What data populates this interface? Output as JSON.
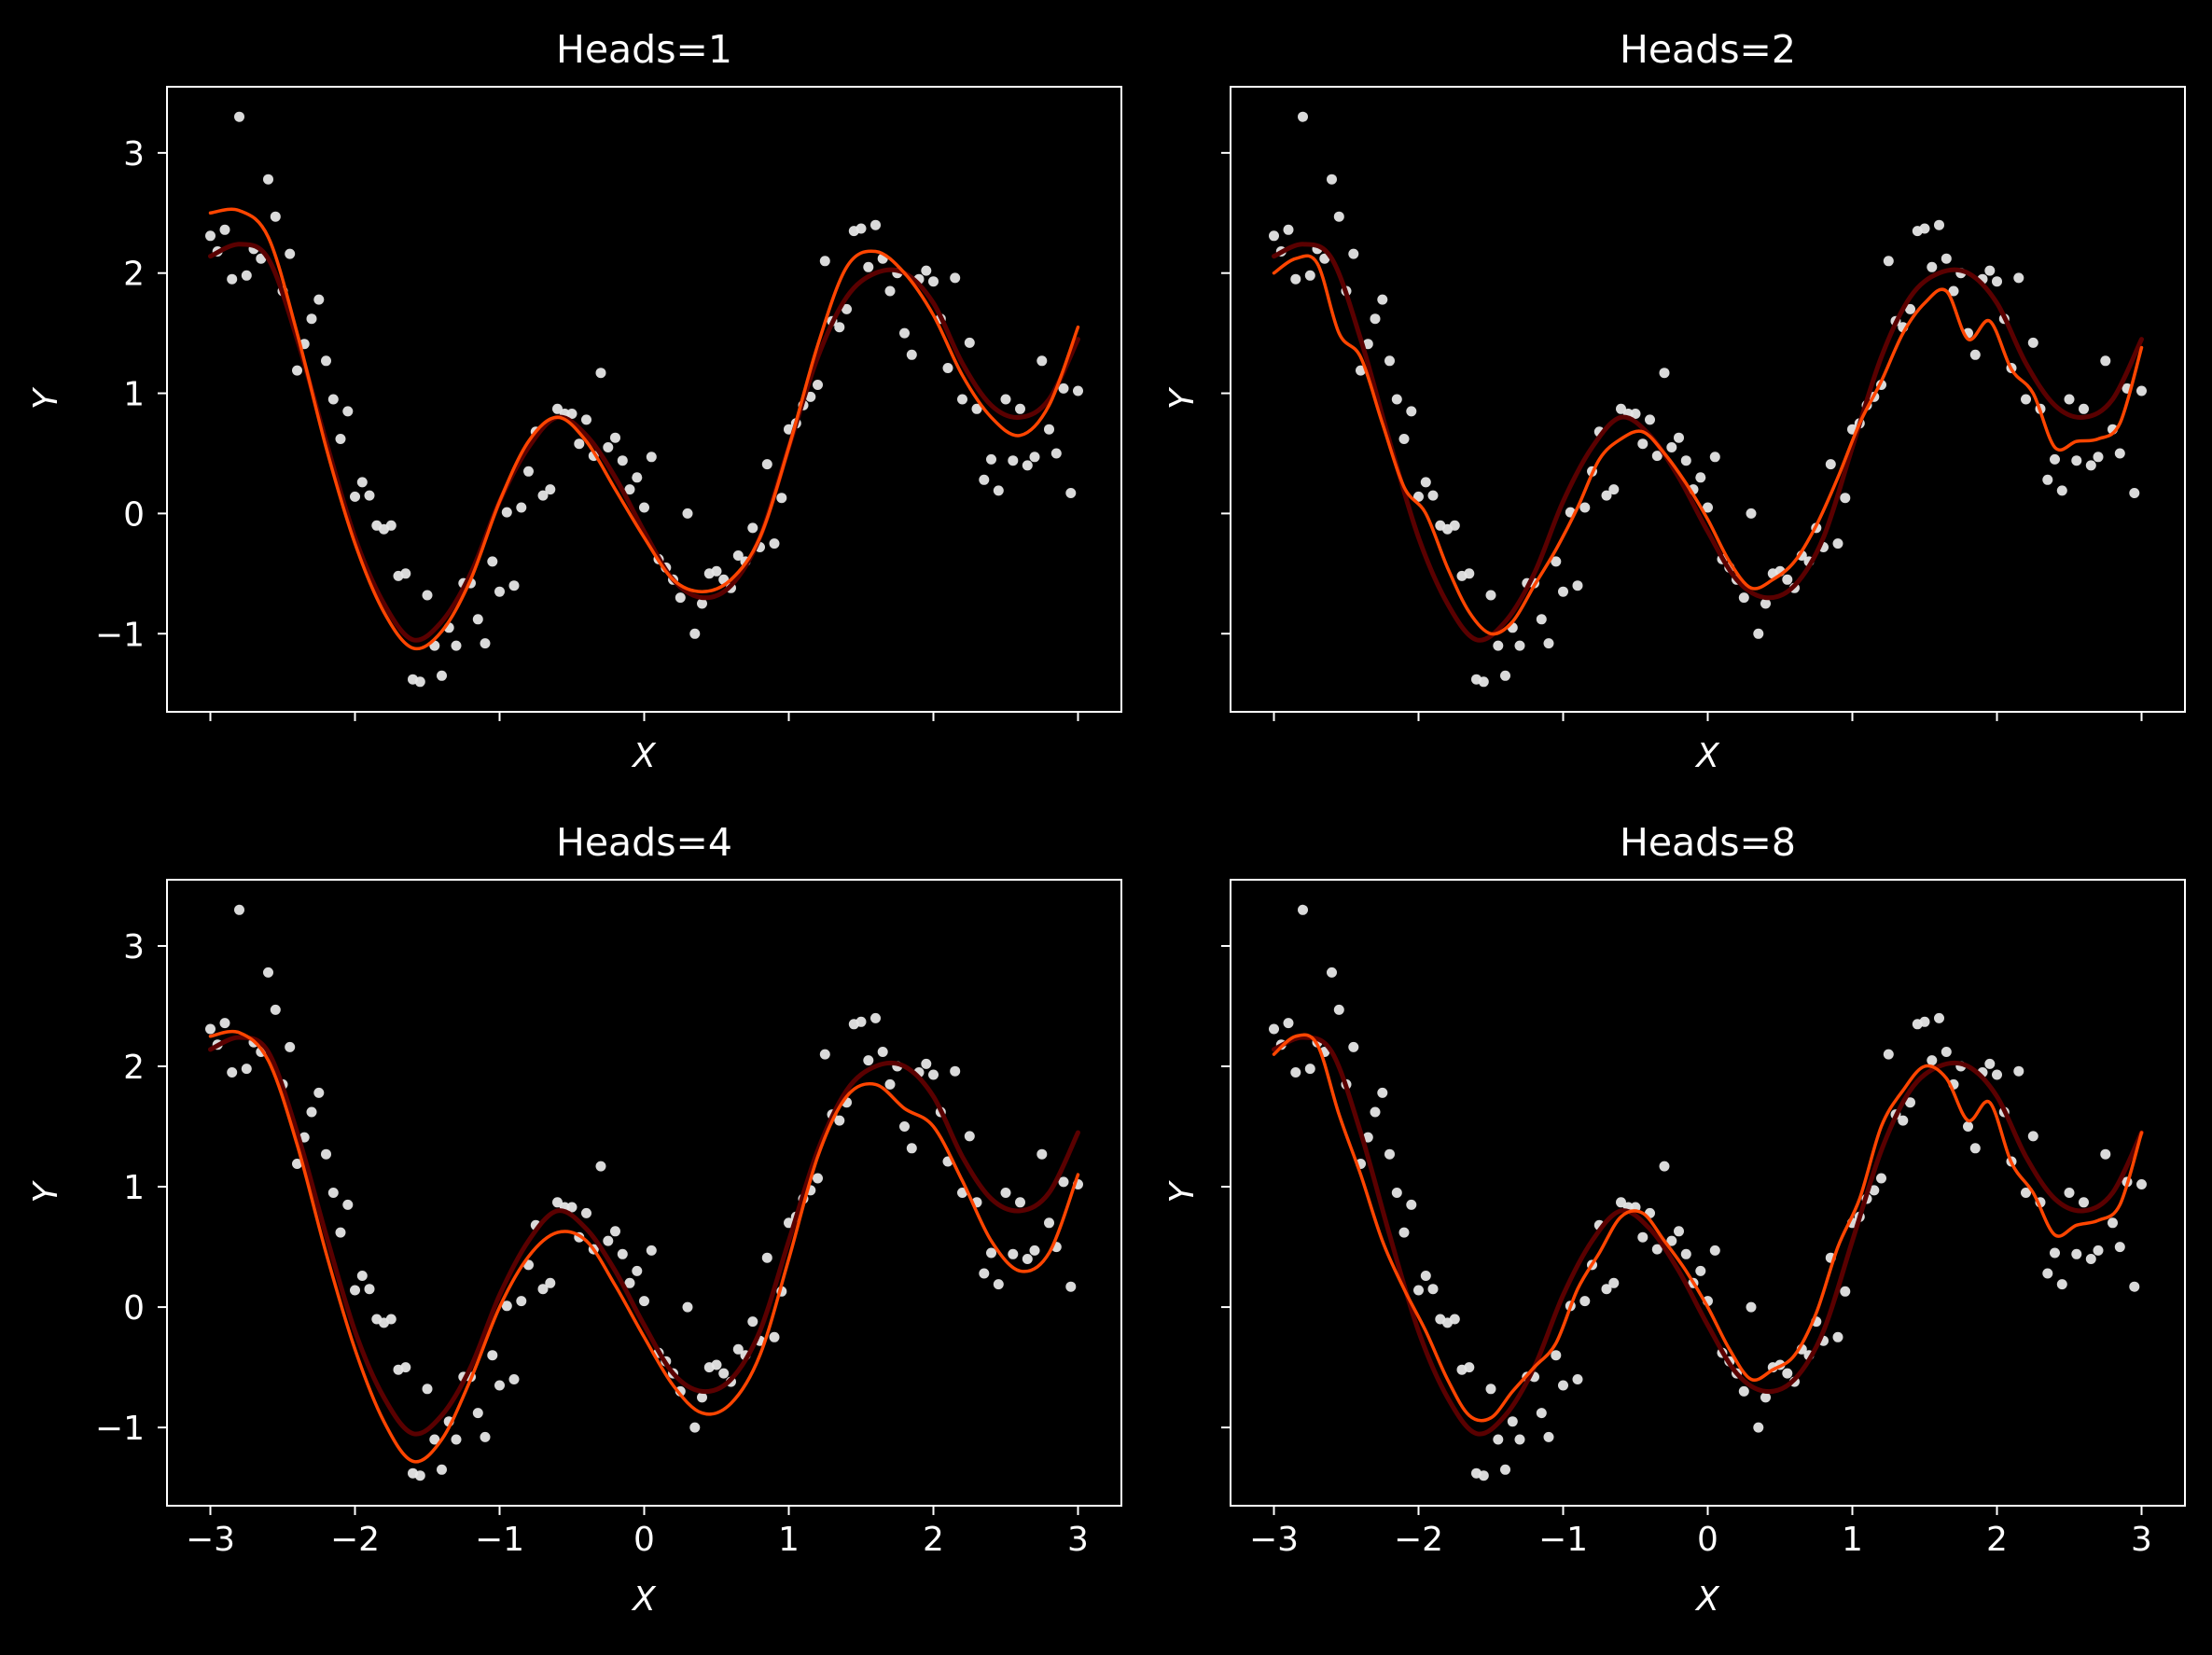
{
  "figure": {
    "background": "#000000",
    "foreground": "#ffffff"
  },
  "colors": {
    "truth": "#5a0000",
    "prediction": "#ff4500",
    "points": "#e6e6e6"
  },
  "chart_data": [
    {
      "type": "scatter",
      "title": "Heads=1",
      "xlabel": "X",
      "ylabel": "Y",
      "xlim": [
        -3.3,
        3.3
      ],
      "ylim": [
        -1.65,
        3.55
      ],
      "xticks": [
        -3,
        -2,
        -1,
        0,
        1,
        2,
        3
      ],
      "xtick_labels": [
        "−3",
        "−2",
        "−1",
        "0",
        "1",
        "2",
        "3"
      ],
      "show_xtick_labels": false,
      "show_ytick_labels": true,
      "yticks": [
        -1,
        0,
        1,
        2,
        3
      ],
      "ytick_labels": [
        "−1",
        "0",
        "1",
        "2",
        "3"
      ],
      "grid": false,
      "series": [
        {
          "role": "truth",
          "x": [
            -3.0,
            -2.8,
            -2.6,
            -2.4,
            -2.2,
            -2.0,
            -1.8,
            -1.6,
            -1.4,
            -1.2,
            -1.0,
            -0.8,
            -0.6,
            -0.4,
            -0.2,
            0.0,
            0.2,
            0.4,
            0.6,
            0.8,
            1.0,
            1.2,
            1.4,
            1.6,
            1.8,
            2.0,
            2.2,
            2.4,
            2.6,
            2.8,
            3.0
          ],
          "y": [
            2.14,
            2.24,
            2.12,
            1.45,
            0.6,
            -0.2,
            -0.75,
            -1.05,
            -0.9,
            -0.5,
            0.1,
            0.55,
            0.8,
            0.65,
            0.3,
            -0.15,
            -0.55,
            -0.7,
            -0.6,
            -0.2,
            0.55,
            1.3,
            1.8,
            2.0,
            2.0,
            1.75,
            1.25,
            0.9,
            0.8,
            0.95,
            1.45
          ]
        },
        {
          "role": "prediction",
          "x": [
            -3.0,
            -2.8,
            -2.6,
            -2.4,
            -2.2,
            -2.0,
            -1.8,
            -1.6,
            -1.4,
            -1.2,
            -1.0,
            -0.8,
            -0.6,
            -0.4,
            -0.2,
            0.0,
            0.2,
            0.4,
            0.6,
            0.8,
            1.0,
            1.2,
            1.4,
            1.6,
            1.8,
            2.0,
            2.2,
            2.4,
            2.6,
            2.8,
            3.0
          ],
          "y": [
            2.5,
            2.52,
            2.3,
            1.5,
            0.55,
            -0.25,
            -0.82,
            -1.12,
            -0.98,
            -0.55,
            0.1,
            0.6,
            0.8,
            0.6,
            0.2,
            -0.2,
            -0.55,
            -0.65,
            -0.55,
            -0.2,
            0.55,
            1.4,
            2.05,
            2.18,
            2.0,
            1.65,
            1.15,
            0.8,
            0.65,
            0.9,
            1.55
          ]
        }
      ]
    },
    {
      "type": "scatter",
      "title": "Heads=2",
      "xlabel": "X",
      "ylabel": "Y",
      "xlim": [
        -3.3,
        3.3
      ],
      "ylim": [
        -1.65,
        3.55
      ],
      "xticks": [
        -3,
        -2,
        -1,
        0,
        1,
        2,
        3
      ],
      "xtick_labels": [
        "−3",
        "−2",
        "−1",
        "0",
        "1",
        "2",
        "3"
      ],
      "show_xtick_labels": false,
      "show_ytick_labels": false,
      "yticks": [
        -1,
        0,
        1,
        2,
        3
      ],
      "ytick_labels": [
        "−1",
        "0",
        "1",
        "2",
        "3"
      ],
      "grid": false,
      "series": [
        {
          "role": "truth",
          "x": [
            -3.0,
            -2.8,
            -2.6,
            -2.4,
            -2.2,
            -2.0,
            -1.8,
            -1.6,
            -1.4,
            -1.2,
            -1.0,
            -0.8,
            -0.6,
            -0.4,
            -0.2,
            0.0,
            0.2,
            0.4,
            0.6,
            0.8,
            1.0,
            1.2,
            1.4,
            1.6,
            1.8,
            2.0,
            2.2,
            2.4,
            2.6,
            2.8,
            3.0
          ],
          "y": [
            2.14,
            2.24,
            2.12,
            1.45,
            0.6,
            -0.2,
            -0.75,
            -1.05,
            -0.9,
            -0.5,
            0.1,
            0.55,
            0.8,
            0.65,
            0.3,
            -0.15,
            -0.55,
            -0.7,
            -0.6,
            -0.2,
            0.55,
            1.3,
            1.8,
            2.0,
            2.0,
            1.75,
            1.25,
            0.9,
            0.8,
            0.95,
            1.45
          ]
        },
        {
          "role": "prediction",
          "x": [
            -3.0,
            -2.85,
            -2.7,
            -2.55,
            -2.4,
            -2.25,
            -2.1,
            -1.95,
            -1.8,
            -1.65,
            -1.5,
            -1.35,
            -1.2,
            -1.05,
            -0.9,
            -0.75,
            -0.6,
            -0.45,
            -0.3,
            -0.15,
            0.0,
            0.15,
            0.3,
            0.45,
            0.6,
            0.75,
            0.9,
            1.05,
            1.2,
            1.35,
            1.5,
            1.65,
            1.8,
            1.95,
            2.1,
            2.25,
            2.4,
            2.55,
            2.7,
            2.85,
            3.0
          ],
          "y": [
            2.0,
            2.12,
            2.08,
            1.5,
            1.3,
            0.75,
            0.22,
            0.0,
            -0.45,
            -0.82,
            -1.0,
            -0.9,
            -0.6,
            -0.3,
            0.05,
            0.45,
            0.62,
            0.68,
            0.5,
            0.25,
            -0.05,
            -0.4,
            -0.62,
            -0.55,
            -0.4,
            -0.1,
            0.3,
            0.75,
            1.1,
            1.5,
            1.75,
            1.85,
            1.45,
            1.6,
            1.2,
            1.0,
            0.55,
            0.6,
            0.62,
            0.75,
            1.38
          ]
        }
      ]
    },
    {
      "type": "scatter",
      "title": "Heads=4",
      "xlabel": "X",
      "ylabel": "Y",
      "xlim": [
        -3.3,
        3.3
      ],
      "ylim": [
        -1.65,
        3.55
      ],
      "xticks": [
        -3,
        -2,
        -1,
        0,
        1,
        2,
        3
      ],
      "xtick_labels": [
        "−3",
        "−2",
        "−1",
        "0",
        "1",
        "2",
        "3"
      ],
      "show_xtick_labels": true,
      "show_ytick_labels": true,
      "yticks": [
        -1,
        0,
        1,
        2,
        3
      ],
      "ytick_labels": [
        "−1",
        "0",
        "1",
        "2",
        "3"
      ],
      "grid": false,
      "series": [
        {
          "role": "truth",
          "x": [
            -3.0,
            -2.8,
            -2.6,
            -2.4,
            -2.2,
            -2.0,
            -1.8,
            -1.6,
            -1.4,
            -1.2,
            -1.0,
            -0.8,
            -0.6,
            -0.4,
            -0.2,
            0.0,
            0.2,
            0.4,
            0.6,
            0.8,
            1.0,
            1.2,
            1.4,
            1.6,
            1.8,
            2.0,
            2.2,
            2.4,
            2.6,
            2.8,
            3.0
          ],
          "y": [
            2.14,
            2.24,
            2.12,
            1.45,
            0.6,
            -0.2,
            -0.75,
            -1.05,
            -0.9,
            -0.5,
            0.1,
            0.55,
            0.8,
            0.65,
            0.3,
            -0.15,
            -0.55,
            -0.7,
            -0.6,
            -0.2,
            0.55,
            1.3,
            1.8,
            2.0,
            2.0,
            1.75,
            1.25,
            0.9,
            0.8,
            0.95,
            1.45
          ]
        },
        {
          "role": "prediction",
          "x": [
            -3.0,
            -2.8,
            -2.6,
            -2.4,
            -2.2,
            -2.0,
            -1.8,
            -1.6,
            -1.4,
            -1.2,
            -1.0,
            -0.8,
            -0.6,
            -0.4,
            -0.2,
            0.0,
            0.2,
            0.4,
            0.6,
            0.8,
            1.0,
            1.2,
            1.4,
            1.6,
            1.8,
            2.0,
            2.2,
            2.4,
            2.6,
            2.8,
            3.0
          ],
          "y": [
            2.25,
            2.28,
            2.05,
            1.35,
            0.45,
            -0.35,
            -0.95,
            -1.28,
            -1.1,
            -0.6,
            0.0,
            0.42,
            0.62,
            0.55,
            0.18,
            -0.25,
            -0.65,
            -0.88,
            -0.8,
            -0.4,
            0.4,
            1.25,
            1.75,
            1.85,
            1.65,
            1.5,
            1.05,
            0.55,
            0.3,
            0.45,
            1.1
          ]
        }
      ]
    },
    {
      "type": "scatter",
      "title": "Heads=8",
      "xlabel": "X",
      "ylabel": "Y",
      "xlim": [
        -3.3,
        3.3
      ],
      "ylim": [
        -1.65,
        3.55
      ],
      "xticks": [
        -3,
        -2,
        -1,
        0,
        1,
        2,
        3
      ],
      "xtick_labels": [
        "−3",
        "−2",
        "−1",
        "0",
        "1",
        "2",
        "3"
      ],
      "show_xtick_labels": true,
      "show_ytick_labels": false,
      "yticks": [
        -1,
        0,
        1,
        2,
        3
      ],
      "ytick_labels": [
        "−1",
        "0",
        "1",
        "2",
        "3"
      ],
      "grid": false,
      "series": [
        {
          "role": "truth",
          "x": [
            -3.0,
            -2.8,
            -2.6,
            -2.4,
            -2.2,
            -2.0,
            -1.8,
            -1.6,
            -1.4,
            -1.2,
            -1.0,
            -0.8,
            -0.6,
            -0.4,
            -0.2,
            0.0,
            0.2,
            0.4,
            0.6,
            0.8,
            1.0,
            1.2,
            1.4,
            1.6,
            1.8,
            2.0,
            2.2,
            2.4,
            2.6,
            2.8,
            3.0
          ],
          "y": [
            2.14,
            2.24,
            2.12,
            1.45,
            0.6,
            -0.2,
            -0.75,
            -1.05,
            -0.9,
            -0.5,
            0.1,
            0.55,
            0.8,
            0.65,
            0.3,
            -0.15,
            -0.55,
            -0.7,
            -0.6,
            -0.2,
            0.55,
            1.3,
            1.8,
            2.0,
            2.0,
            1.75,
            1.25,
            0.9,
            0.8,
            0.95,
            1.45
          ]
        },
        {
          "role": "prediction",
          "x": [
            -3.0,
            -2.85,
            -2.7,
            -2.55,
            -2.4,
            -2.25,
            -2.1,
            -1.95,
            -1.8,
            -1.65,
            -1.5,
            -1.35,
            -1.2,
            -1.05,
            -0.9,
            -0.75,
            -0.6,
            -0.45,
            -0.3,
            -0.15,
            0.0,
            0.15,
            0.3,
            0.45,
            0.6,
            0.75,
            0.9,
            1.05,
            1.2,
            1.35,
            1.5,
            1.65,
            1.8,
            1.95,
            2.1,
            2.25,
            2.4,
            2.55,
            2.7,
            2.85,
            3.0
          ],
          "y": [
            2.1,
            2.25,
            2.18,
            1.6,
            1.1,
            0.55,
            0.15,
            -0.2,
            -0.6,
            -0.9,
            -0.92,
            -0.7,
            -0.5,
            -0.3,
            0.15,
            0.45,
            0.75,
            0.78,
            0.55,
            0.3,
            0.0,
            -0.35,
            -0.6,
            -0.52,
            -0.4,
            -0.05,
            0.5,
            0.9,
            1.5,
            1.8,
            2.0,
            1.9,
            1.55,
            1.7,
            1.2,
            0.95,
            0.6,
            0.68,
            0.72,
            0.85,
            1.45
          ]
        }
      ]
    }
  ],
  "scatter_points": {
    "x": [
      -3.0,
      -2.95,
      -2.9,
      -2.85,
      -2.8,
      -2.75,
      -2.7,
      -2.65,
      -2.6,
      -2.55,
      -2.5,
      -2.45,
      -2.4,
      -2.35,
      -2.3,
      -2.25,
      -2.2,
      -2.15,
      -2.1,
      -2.05,
      -2.0,
      -1.95,
      -1.9,
      -1.85,
      -1.8,
      -1.75,
      -1.7,
      -1.65,
      -1.6,
      -1.55,
      -1.5,
      -1.45,
      -1.4,
      -1.35,
      -1.3,
      -1.25,
      -1.2,
      -1.15,
      -1.1,
      -1.05,
      -1.0,
      -0.95,
      -0.9,
      -0.85,
      -0.8,
      -0.75,
      -0.7,
      -0.65,
      -0.6,
      -0.55,
      -0.5,
      -0.45,
      -0.4,
      -0.35,
      -0.3,
      -0.25,
      -0.2,
      -0.15,
      -0.1,
      -0.05,
      0.0,
      0.05,
      0.1,
      0.15,
      0.2,
      0.25,
      0.3,
      0.35,
      0.4,
      0.45,
      0.5,
      0.55,
      0.6,
      0.65,
      0.7,
      0.75,
      0.8,
      0.85,
      0.9,
      0.95,
      1.0,
      1.05,
      1.1,
      1.15,
      1.2,
      1.25,
      1.3,
      1.35,
      1.4,
      1.45,
      1.5,
      1.55,
      1.6,
      1.65,
      1.7,
      1.75,
      1.8,
      1.85,
      1.9,
      1.95,
      2.0,
      2.05,
      2.1,
      2.15,
      2.2,
      2.25,
      2.3,
      2.35,
      2.4,
      2.45,
      2.5,
      2.55,
      2.6,
      2.65,
      2.7,
      2.75,
      2.8,
      2.85,
      2.9,
      2.95,
      3.0
    ],
    "y": [
      2.31,
      2.18,
      2.36,
      1.95,
      3.3,
      1.98,
      2.2,
      2.12,
      2.78,
      2.47,
      1.85,
      2.16,
      1.19,
      1.41,
      1.62,
      1.78,
      1.27,
      0.95,
      0.62,
      0.85,
      0.14,
      0.26,
      0.15,
      -0.1,
      -0.13,
      -0.1,
      -0.52,
      -0.5,
      -1.38,
      -1.4,
      -0.68,
      -1.1,
      -1.35,
      -0.95,
      -1.1,
      -0.58,
      -0.58,
      -0.88,
      -1.08,
      -0.4,
      -0.65,
      0.01,
      -0.6,
      0.05,
      0.35,
      0.68,
      0.15,
      0.2,
      0.87,
      0.83,
      0.83,
      0.58,
      0.78,
      0.48,
      1.17,
      0.55,
      0.63,
      0.44,
      0.2,
      0.3,
      0.05,
      0.47,
      -0.38,
      -0.45,
      -0.55,
      -0.7,
      0.0,
      -1.0,
      -0.75,
      -0.5,
      -0.48,
      -0.55,
      -0.62,
      -0.35,
      -0.4,
      -0.12,
      -0.28,
      0.41,
      -0.25,
      0.13,
      0.7,
      0.75,
      0.9,
      0.97,
      1.07,
      2.1,
      1.6,
      1.55,
      1.7,
      2.35,
      2.37,
      2.05,
      2.4,
      2.12,
      1.85,
      2.0,
      1.5,
      1.32,
      1.95,
      2.02,
      1.93,
      1.62,
      1.21,
      1.96,
      0.95,
      1.42,
      0.87,
      0.28,
      0.45,
      0.19,
      0.95,
      0.44,
      0.87,
      0.4,
      0.47,
      1.27,
      0.7,
      0.5,
      1.04,
      0.17,
      1.02
    ]
  }
}
